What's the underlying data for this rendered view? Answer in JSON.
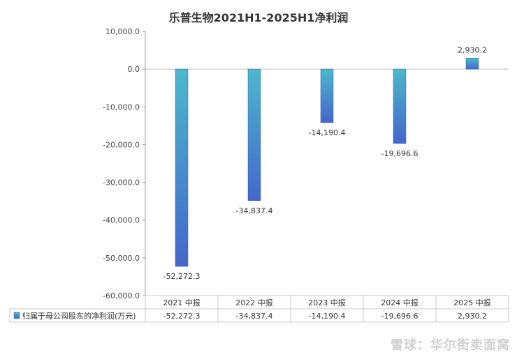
{
  "chart_data": {
    "type": "bar",
    "title": "乐普生物2021H1-2025H1净利润",
    "categories": [
      "2021 中报",
      "2022 中报",
      "2023 中报",
      "2024 中报",
      "2025 中报"
    ],
    "series": [
      {
        "name": "归属于母公司股东的净利润(万元)",
        "values": [
          -52272.3,
          -34837.4,
          -14190.4,
          -19696.6,
          2930.2
        ],
        "labels": [
          "-52,272.3",
          "-34,837.4",
          "-14,190.4",
          "-19,696.6",
          "2,930.2"
        ]
      }
    ],
    "ylim": [
      -60000,
      10000
    ],
    "yticks": [
      10000,
      0,
      -10000,
      -20000,
      -30000,
      -40000,
      -50000,
      -60000
    ],
    "ytick_labels": [
      "10,000.0",
      "0.0",
      "-10,000.0",
      "-20,000.0",
      "-30,000.0",
      "-40,000.0",
      "-50,000.0",
      "-60,000.0"
    ],
    "grid": false,
    "legend": "data-table",
    "colors": {
      "bar_top": "#4bb8cc",
      "bar_bottom": "#4466cc",
      "axis": "#999999"
    }
  },
  "watermark": "雪球：华尔街卖面窝"
}
